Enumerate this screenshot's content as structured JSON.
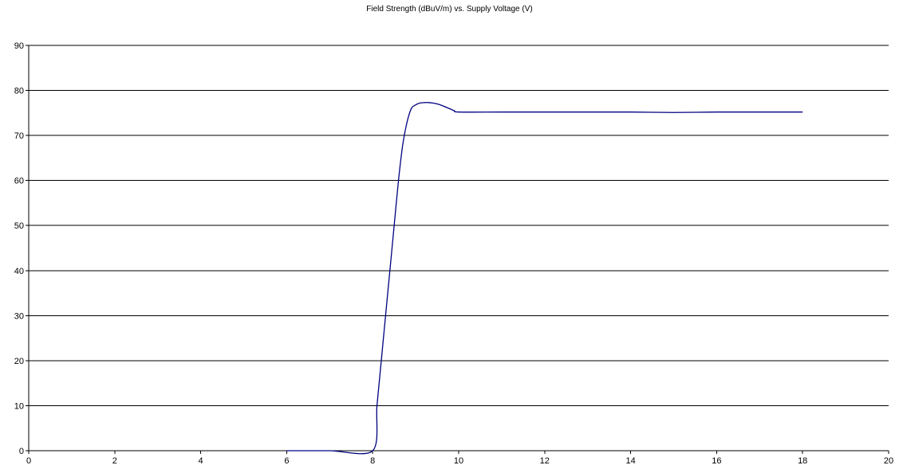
{
  "chart_data": {
    "type": "line",
    "title": "Field Strength (dBuV/m) vs. Supply Voltage (V)",
    "xlabel": "",
    "ylabel": "",
    "xlim": [
      0,
      20
    ],
    "ylim": [
      0,
      90
    ],
    "x_ticks": [
      0,
      2,
      4,
      6,
      8,
      10,
      12,
      14,
      16,
      18,
      20
    ],
    "y_ticks": [
      0,
      10,
      20,
      30,
      40,
      50,
      60,
      70,
      80,
      90
    ],
    "grid": "horizontal",
    "legend": "none",
    "series_color": "#000080",
    "series": [
      {
        "x": [
          6,
          7,
          8,
          8.1,
          8.2,
          8.3,
          8.4,
          8.5,
          8.6,
          8.7,
          8.8,
          8.9,
          9.0,
          9.1,
          9.2,
          9.3,
          9.4,
          9.5,
          9.6,
          9.7,
          9.8,
          9.9,
          10,
          11,
          12,
          13,
          14,
          15,
          16,
          17,
          18
        ],
        "y": [
          0,
          0,
          0,
          10,
          20,
          30,
          40,
          50,
          60,
          68,
          73,
          76,
          76.8,
          77.2,
          77.3,
          77.3,
          77.2,
          77,
          76.7,
          76.3,
          75.9,
          75.5,
          75.2,
          75.2,
          75.2,
          75.2,
          75.2,
          75.1,
          75.2,
          75.2,
          75.2
        ]
      }
    ]
  }
}
